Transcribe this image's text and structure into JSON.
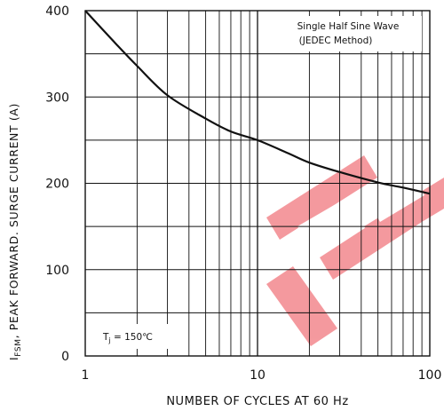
{
  "chart_data": {
    "type": "line",
    "xscale": "log",
    "xlim": [
      1,
      100
    ],
    "ylim": [
      0,
      400
    ],
    "x_ticks": [
      1,
      10,
      100
    ],
    "x_tick_labels": [
      "1",
      "10",
      "100"
    ],
    "y_ticks": [
      0,
      100,
      200,
      300,
      400
    ],
    "y_tick_labels": [
      "0",
      "100",
      "200",
      "300",
      "400"
    ],
    "xlabel": "NUMBER OF CYCLES   AT 60 Hz",
    "ylabel_main": "I",
    "ylabel_sub": "FSM",
    "ylabel_rest": ", PEAK FORWARD. SURGE CURRENT (A)",
    "grid": true,
    "series": [
      {
        "x": [
          1,
          1.5,
          2,
          3,
          5,
          7,
          10,
          15,
          20,
          30,
          50,
          70,
          100
        ],
        "y": [
          400,
          362,
          336,
          302,
          275,
          260,
          250,
          235,
          224,
          213,
          201,
          195,
          188
        ]
      }
    ],
    "annotations": {
      "waveform_line1": "Single Half Sine   Wave",
      "waveform_line2": "(JEDEC Method)",
      "tj_prefix": "T",
      "tj_sub": "j",
      "tj_value": " = 150℃"
    },
    "watermark_color": "#e8202a"
  }
}
